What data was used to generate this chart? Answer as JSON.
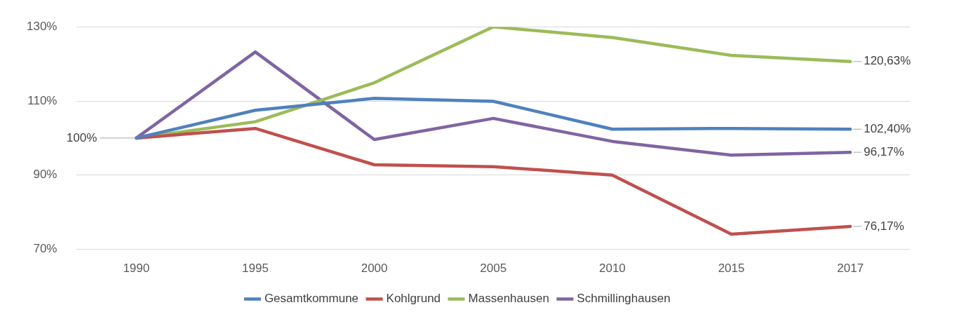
{
  "chart_data": {
    "type": "line",
    "categories": [
      "1990",
      "1995",
      "2000",
      "2005",
      "2010",
      "2015",
      "2017"
    ],
    "series": [
      {
        "name": "Gesamtkommune",
        "color": "#4f81bd",
        "values": [
          100,
          107.5,
          110.7,
          109.9,
          102.4,
          102.6,
          102.4
        ],
        "value_labels": [
          null,
          null,
          null,
          null,
          null,
          null,
          "102,40%"
        ]
      },
      {
        "name": "Kohlgrund",
        "color": "#c0504d",
        "values": [
          100,
          102.6,
          92.8,
          92.3,
          90,
          74.1,
          76.17
        ],
        "value_labels": [
          null,
          null,
          null,
          null,
          null,
          null,
          "76,17%"
        ]
      },
      {
        "name": "Massenhausen",
        "color": "#9bbb59",
        "values": [
          100,
          104.4,
          114.9,
          130,
          127.1,
          122.3,
          120.63
        ],
        "value_labels": [
          null,
          null,
          null,
          null,
          null,
          null,
          "120,63%"
        ]
      },
      {
        "name": "Schmillinghausen",
        "color": "#8064a2",
        "values": [
          100,
          123.2,
          99.6,
          105.3,
          99.1,
          95.4,
          96.17
        ],
        "value_labels": [
          null,
          null,
          null,
          null,
          null,
          null,
          "96,17%"
        ]
      }
    ],
    "ylim": [
      70,
      130
    ],
    "yticks": [
      {
        "value": 70,
        "label": "70%"
      },
      {
        "value": 90,
        "label": "90%"
      },
      {
        "value": 110,
        "label": "110%"
      },
      {
        "value": 130,
        "label": "130%"
      }
    ],
    "annotations": [
      {
        "text": "100%",
        "x": "1990",
        "y": 100
      }
    ],
    "grid": "y",
    "legend": "bottom",
    "marker": "none",
    "line_style": "solid"
  }
}
